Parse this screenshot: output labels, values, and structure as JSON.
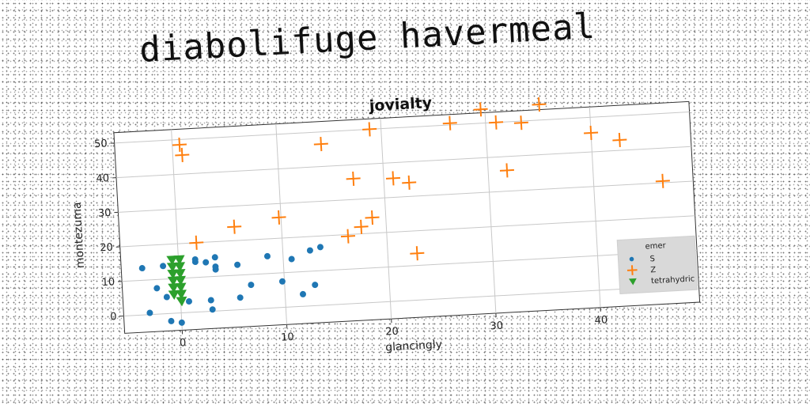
{
  "heading": "diabolifuge havermeal",
  "chart_data": {
    "type": "scatter",
    "title": "jovialty",
    "xlabel": "glancingly",
    "ylabel": "montezuma",
    "xlim": [
      -5.5,
      49.5
    ],
    "ylim": [
      -5,
      53
    ],
    "xticks": [
      0,
      10,
      20,
      30,
      40
    ],
    "yticks": [
      0,
      10,
      20,
      30,
      40,
      50
    ],
    "grid": true,
    "legend": {
      "title": "emer",
      "placement": "lower-right"
    },
    "series": [
      {
        "name": "S",
        "marker": "circle",
        "color": "#1f77b4",
        "points": [
          [
            -3.5,
            13.5
          ],
          [
            -3.0,
            0.5
          ],
          [
            -2.2,
            7.5
          ],
          [
            -1.5,
            13.8
          ],
          [
            -1.3,
            4.8
          ],
          [
            -1.0,
            -2.2
          ],
          [
            0.0,
            -2.8
          ],
          [
            0.8,
            3.2
          ],
          [
            1.6,
            14.5
          ],
          [
            1.6,
            15.2
          ],
          [
            2.6,
            14.2
          ],
          [
            2.9,
            3.2
          ],
          [
            3.0,
            0.5
          ],
          [
            3.5,
            12.0
          ],
          [
            3.5,
            15.5
          ],
          [
            3.5,
            12.8
          ],
          [
            5.6,
            13.0
          ],
          [
            5.7,
            3.5
          ],
          [
            6.8,
            7.0
          ],
          [
            8.5,
            15.0
          ],
          [
            9.8,
            7.5
          ],
          [
            10.8,
            13.8
          ],
          [
            11.7,
            3.5
          ],
          [
            12.6,
            16.0
          ],
          [
            12.9,
            6.0
          ],
          [
            13.6,
            16.8
          ]
        ]
      },
      {
        "name": "Z",
        "marker": "plus",
        "color": "#ff7f0e",
        "points": [
          [
            0.7,
            48.5
          ],
          [
            0.9,
            45.5
          ],
          [
            1.8,
            20.0
          ],
          [
            5.5,
            24.0
          ],
          [
            9.8,
            26.0
          ],
          [
            14.2,
            46.5
          ],
          [
            16.3,
            19.5
          ],
          [
            17.1,
            36.0
          ],
          [
            17.6,
            22.0
          ],
          [
            18.7,
            24.5
          ],
          [
            18.9,
            50.0
          ],
          [
            20.9,
            35.5
          ],
          [
            22.4,
            34.0
          ],
          [
            22.8,
            13.5
          ],
          [
            26.6,
            50.5
          ],
          [
            29.6,
            54.0
          ],
          [
            31.0,
            50.0
          ],
          [
            31.8,
            36.0
          ],
          [
            33.4,
            49.5
          ],
          [
            35.2,
            54.5
          ],
          [
            40.0,
            45.5
          ],
          [
            42.7,
            43.0
          ],
          [
            46.6,
            30.5
          ]
        ]
      },
      {
        "name": "tetrahydric",
        "marker": "triangle-down",
        "color": "#2ca02c",
        "points": [
          [
            -0.6,
            15.5
          ],
          [
            -0.6,
            13.5
          ],
          [
            -0.6,
            11.5
          ],
          [
            -0.6,
            9.5
          ],
          [
            -0.6,
            7.5
          ],
          [
            -0.6,
            5.5
          ],
          [
            0.1,
            15.5
          ],
          [
            0.1,
            13.5
          ],
          [
            0.1,
            11.5
          ],
          [
            0.1,
            9.5
          ],
          [
            0.1,
            7.5
          ],
          [
            0.1,
            5.5
          ],
          [
            0.1,
            3.5
          ]
        ]
      }
    ]
  }
}
